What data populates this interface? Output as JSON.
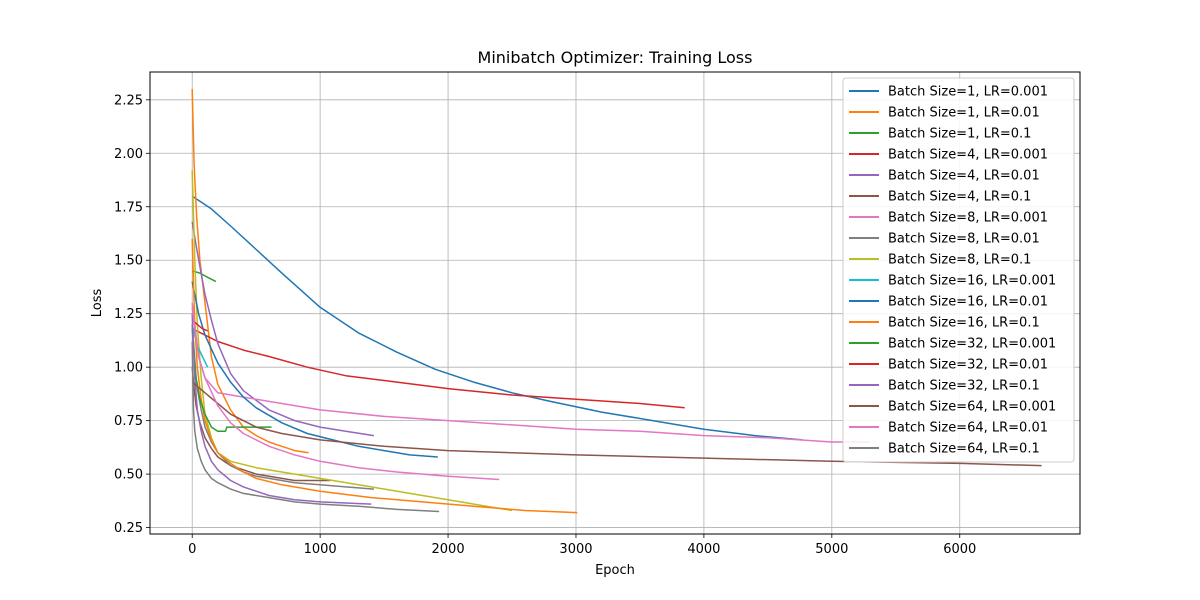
{
  "chart_data": {
    "type": "line",
    "title": "Minibatch Optimizer: Training Loss",
    "xlabel": "Epoch",
    "ylabel": "Loss",
    "xlim": [
      -330,
      6940
    ],
    "ylim": [
      0.22,
      2.38
    ],
    "xticks": [
      0,
      1000,
      2000,
      3000,
      4000,
      5000,
      6000
    ],
    "xtick_labels": [
      "0",
      "1000",
      "2000",
      "3000",
      "4000",
      "5000",
      "6000"
    ],
    "yticks": [
      0.25,
      0.5,
      0.75,
      1.0,
      1.25,
      1.5,
      1.75,
      2.0,
      2.25
    ],
    "ytick_labels": [
      "0.25",
      "0.50",
      "0.75",
      "1.00",
      "1.25",
      "1.50",
      "1.75",
      "2.00",
      "2.25"
    ],
    "grid": true,
    "legend_position": "upper-right",
    "series": [
      {
        "name": "Batch Size=1, LR=0.001",
        "color": "#1f77b4",
        "points": [
          [
            0,
            1.8
          ],
          [
            150,
            1.74
          ],
          [
            300,
            1.66
          ],
          [
            500,
            1.55
          ],
          [
            700,
            1.44
          ],
          [
            1000,
            1.28
          ],
          [
            1300,
            1.16
          ],
          [
            1600,
            1.07
          ],
          [
            1900,
            0.99
          ],
          [
            2200,
            0.93
          ],
          [
            2500,
            0.88
          ],
          [
            2800,
            0.84
          ],
          [
            3200,
            0.79
          ],
          [
            3600,
            0.75
          ],
          [
            4000,
            0.71
          ],
          [
            4400,
            0.68
          ],
          [
            4770,
            0.66
          ]
        ]
      },
      {
        "name": "Batch Size=1, LR=0.01",
        "color": "#ff7f0e",
        "points": [
          [
            0,
            2.3
          ],
          [
            15,
            1.95
          ],
          [
            35,
            1.7
          ],
          [
            60,
            1.5
          ],
          [
            100,
            1.3
          ],
          [
            150,
            1.05
          ],
          [
            200,
            0.92
          ],
          [
            300,
            0.8
          ],
          [
            400,
            0.72
          ],
          [
            500,
            0.68
          ],
          [
            600,
            0.65
          ],
          [
            700,
            0.63
          ],
          [
            800,
            0.61
          ],
          [
            910,
            0.6
          ]
        ]
      },
      {
        "name": "Batch Size=1, LR=0.1",
        "color": "#2ca02c",
        "points": [
          [
            0,
            1.45
          ],
          [
            60,
            1.44
          ],
          [
            120,
            1.42
          ],
          [
            185,
            1.4
          ]
        ]
      },
      {
        "name": "Batch Size=4, LR=0.001",
        "color": "#d62728",
        "points": [
          [
            0,
            1.18
          ],
          [
            100,
            1.15
          ],
          [
            200,
            1.12
          ],
          [
            400,
            1.08
          ],
          [
            600,
            1.05
          ],
          [
            900,
            1.0
          ],
          [
            1200,
            0.96
          ],
          [
            1600,
            0.93
          ],
          [
            2000,
            0.9
          ],
          [
            2500,
            0.87
          ],
          [
            3000,
            0.85
          ],
          [
            3500,
            0.83
          ],
          [
            3850,
            0.81
          ]
        ]
      },
      {
        "name": "Batch Size=4, LR=0.01",
        "color": "#9467bd",
        "points": [
          [
            0,
            1.68
          ],
          [
            30,
            1.57
          ],
          [
            60,
            1.47
          ],
          [
            100,
            1.34
          ],
          [
            150,
            1.22
          ],
          [
            200,
            1.11
          ],
          [
            300,
            0.97
          ],
          [
            400,
            0.89
          ],
          [
            600,
            0.8
          ],
          [
            800,
            0.75
          ],
          [
            1000,
            0.72
          ],
          [
            1200,
            0.7
          ],
          [
            1420,
            0.68
          ]
        ]
      },
      {
        "name": "Batch Size=4, LR=0.1",
        "color": "#8c564b",
        "points": [
          [
            0,
            1.0
          ],
          [
            15,
            0.9
          ],
          [
            30,
            0.82
          ],
          [
            60,
            0.74
          ],
          [
            100,
            0.67
          ],
          [
            150,
            0.62
          ],
          [
            200,
            0.58
          ],
          [
            300,
            0.54
          ],
          [
            400,
            0.52
          ],
          [
            500,
            0.5
          ],
          [
            600,
            0.49
          ],
          [
            700,
            0.48
          ],
          [
            800,
            0.47
          ],
          [
            1080,
            0.47
          ]
        ]
      },
      {
        "name": "Batch Size=8, LR=0.001",
        "color": "#e377c2",
        "points": [
          [
            0,
            1.3
          ],
          [
            50,
            1.05
          ],
          [
            100,
            0.95
          ],
          [
            200,
            0.88
          ],
          [
            400,
            0.86
          ],
          [
            700,
            0.83
          ],
          [
            1000,
            0.8
          ],
          [
            1500,
            0.77
          ],
          [
            2000,
            0.75
          ],
          [
            2500,
            0.73
          ],
          [
            3000,
            0.71
          ],
          [
            3500,
            0.7
          ],
          [
            4000,
            0.68
          ],
          [
            4500,
            0.67
          ],
          [
            5000,
            0.65
          ],
          [
            5300,
            0.65
          ]
        ]
      },
      {
        "name": "Batch Size=8, LR=0.01",
        "color": "#7f7f7f",
        "points": [
          [
            0,
            1.18
          ],
          [
            20,
            1.0
          ],
          [
            40,
            0.9
          ],
          [
            70,
            0.8
          ],
          [
            100,
            0.72
          ],
          [
            150,
            0.65
          ],
          [
            200,
            0.6
          ],
          [
            300,
            0.54
          ],
          [
            400,
            0.51
          ],
          [
            500,
            0.49
          ],
          [
            600,
            0.48
          ],
          [
            700,
            0.47
          ],
          [
            800,
            0.46
          ],
          [
            1000,
            0.45
          ],
          [
            1200,
            0.44
          ],
          [
            1420,
            0.43
          ]
        ]
      },
      {
        "name": "Batch Size=8, LR=0.1",
        "color": "#bcbd22",
        "points": [
          [
            0,
            1.92
          ],
          [
            20,
            1.5
          ],
          [
            40,
            1.2
          ],
          [
            70,
            0.95
          ],
          [
            100,
            0.78
          ],
          [
            150,
            0.67
          ],
          [
            200,
            0.6
          ],
          [
            300,
            0.56
          ],
          [
            500,
            0.53
          ],
          [
            800,
            0.5
          ],
          [
            1100,
            0.47
          ],
          [
            1400,
            0.44
          ],
          [
            1700,
            0.41
          ],
          [
            2000,
            0.38
          ],
          [
            2300,
            0.35
          ],
          [
            2500,
            0.33
          ]
        ]
      },
      {
        "name": "Batch Size=16, LR=0.001",
        "color": "#17becf",
        "points": [
          [
            0,
            1.2
          ],
          [
            40,
            1.1
          ],
          [
            80,
            1.05
          ],
          [
            120,
            1.0
          ]
        ]
      },
      {
        "name": "Batch Size=16, LR=0.01",
        "color": "#1f77b4",
        "points": [
          [
            0,
            1.4
          ],
          [
            50,
            1.25
          ],
          [
            100,
            1.15
          ],
          [
            200,
            1.02
          ],
          [
            300,
            0.93
          ],
          [
            400,
            0.86
          ],
          [
            500,
            0.81
          ],
          [
            700,
            0.74
          ],
          [
            900,
            0.69
          ],
          [
            1100,
            0.66
          ],
          [
            1300,
            0.63
          ],
          [
            1500,
            0.61
          ],
          [
            1700,
            0.59
          ],
          [
            1920,
            0.58
          ]
        ]
      },
      {
        "name": "Batch Size=16, LR=0.1",
        "color": "#ff7f0e",
        "points": [
          [
            0,
            1.6
          ],
          [
            20,
            1.2
          ],
          [
            40,
            1.0
          ],
          [
            70,
            0.85
          ],
          [
            100,
            0.75
          ],
          [
            150,
            0.66
          ],
          [
            200,
            0.6
          ],
          [
            300,
            0.55
          ],
          [
            400,
            0.51
          ],
          [
            500,
            0.48
          ],
          [
            700,
            0.45
          ],
          [
            1000,
            0.42
          ],
          [
            1400,
            0.39
          ],
          [
            1800,
            0.37
          ],
          [
            2200,
            0.35
          ],
          [
            2600,
            0.33
          ],
          [
            3010,
            0.32
          ]
        ]
      },
      {
        "name": "Batch Size=32, LR=0.001",
        "color": "#2ca02c",
        "points": [
          [
            0,
            1.2
          ],
          [
            30,
            0.95
          ],
          [
            60,
            0.85
          ],
          [
            100,
            0.78
          ],
          [
            150,
            0.72
          ],
          [
            200,
            0.7
          ],
          [
            260,
            0.7
          ],
          [
            270,
            0.72
          ],
          [
            300,
            0.72
          ],
          [
            400,
            0.72
          ],
          [
            500,
            0.72
          ],
          [
            620,
            0.72
          ]
        ]
      },
      {
        "name": "Batch Size=32, LR=0.01",
        "color": "#d62728",
        "points": [
          [
            0,
            1.22
          ],
          [
            40,
            1.2
          ],
          [
            80,
            1.18
          ],
          [
            120,
            1.17
          ]
        ]
      },
      {
        "name": "Batch Size=32, LR=0.1",
        "color": "#9467bd",
        "points": [
          [
            0,
            1.25
          ],
          [
            20,
            0.95
          ],
          [
            40,
            0.8
          ],
          [
            70,
            0.7
          ],
          [
            100,
            0.63
          ],
          [
            150,
            0.56
          ],
          [
            200,
            0.52
          ],
          [
            300,
            0.47
          ],
          [
            400,
            0.44
          ],
          [
            500,
            0.42
          ],
          [
            600,
            0.4
          ],
          [
            800,
            0.38
          ],
          [
            1000,
            0.37
          ],
          [
            1400,
            0.36
          ]
        ]
      },
      {
        "name": "Batch Size=64, LR=0.001",
        "color": "#8c564b",
        "points": [
          [
            0,
            0.93
          ],
          [
            100,
            0.88
          ],
          [
            200,
            0.83
          ],
          [
            300,
            0.78
          ],
          [
            400,
            0.75
          ],
          [
            500,
            0.72
          ],
          [
            700,
            0.69
          ],
          [
            1000,
            0.66
          ],
          [
            1500,
            0.63
          ],
          [
            2000,
            0.61
          ],
          [
            3000,
            0.59
          ],
          [
            4000,
            0.575
          ],
          [
            5000,
            0.56
          ],
          [
            6000,
            0.55
          ],
          [
            6640,
            0.54
          ]
        ]
      },
      {
        "name": "Batch Size=64, LR=0.01",
        "color": "#e377c2",
        "points": [
          [
            0,
            1.28
          ],
          [
            50,
            1.05
          ],
          [
            100,
            0.95
          ],
          [
            200,
            0.82
          ],
          [
            300,
            0.74
          ],
          [
            400,
            0.69
          ],
          [
            600,
            0.63
          ],
          [
            800,
            0.59
          ],
          [
            1000,
            0.56
          ],
          [
            1300,
            0.53
          ],
          [
            1600,
            0.51
          ],
          [
            2000,
            0.49
          ],
          [
            2400,
            0.475
          ]
        ]
      },
      {
        "name": "Batch Size=64, LR=0.1",
        "color": "#7f7f7f",
        "points": [
          [
            0,
            1.12
          ],
          [
            10,
            0.8
          ],
          [
            20,
            0.7
          ],
          [
            40,
            0.62
          ],
          [
            70,
            0.56
          ],
          [
            100,
            0.52
          ],
          [
            150,
            0.48
          ],
          [
            200,
            0.46
          ],
          [
            300,
            0.43
          ],
          [
            400,
            0.41
          ],
          [
            600,
            0.39
          ],
          [
            800,
            0.37
          ],
          [
            1000,
            0.36
          ],
          [
            1300,
            0.35
          ],
          [
            1600,
            0.335
          ],
          [
            1930,
            0.325
          ]
        ]
      }
    ]
  }
}
